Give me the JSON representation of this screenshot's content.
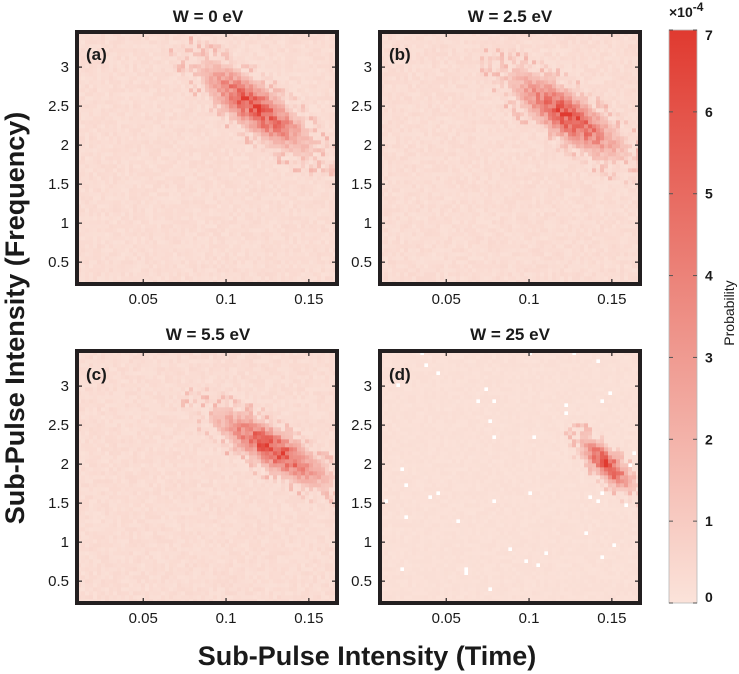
{
  "chart_data": {
    "type": "heatmap",
    "xlabel": "Sub-Pulse  Intensity  (Time)",
    "ylabel": "Sub-Pulse  Intensity  (Frequency)",
    "xlim": [
      0.01,
      0.167
    ],
    "ylim": [
      0.22,
      3.45
    ],
    "xticks": [
      0.05,
      0.1,
      0.15
    ],
    "xtick_labels": [
      "0.05",
      "0.1",
      "0.15"
    ],
    "yticks": [
      0.5,
      1,
      1.5,
      2,
      2.5,
      3
    ],
    "ytick_labels": [
      "0.5",
      "1",
      "1.5",
      "2",
      "2.5",
      "3"
    ],
    "colorbar": {
      "label": "Probability",
      "min": 0,
      "max": 7,
      "ticks": [
        0,
        1,
        2,
        3,
        4,
        5,
        6,
        7
      ],
      "tick_labels": [
        "0",
        "1",
        "2",
        "3",
        "4",
        "5",
        "6",
        "7"
      ],
      "multiplier_base": "×10",
      "multiplier_exponent": "-4",
      "color_low": "#fbe3da",
      "color_high": "#e03a30"
    },
    "panels": [
      {
        "label": "(a)",
        "title": "W = 0 eV",
        "peak": 6.5,
        "background": 0.25,
        "blob": {
          "center": [
            0.118,
            2.48
          ],
          "slope_dy_dx": -14.0,
          "half_length_x": 0.032,
          "half_width_y": 0.33
        }
      },
      {
        "label": "(b)",
        "title": "W = 2.5 eV",
        "peak": 6.5,
        "background": 0.25,
        "blob": {
          "center": [
            0.123,
            2.38
          ],
          "slope_dy_dx": -13.0,
          "half_length_x": 0.033,
          "half_width_y": 0.33
        }
      },
      {
        "label": "(c)",
        "title": "W = 5.5 eV",
        "peak": 6.5,
        "background": 0.25,
        "blob": {
          "center": [
            0.128,
            2.2
          ],
          "slope_dy_dx": -11.5,
          "half_length_x": 0.034,
          "half_width_y": 0.28
        }
      },
      {
        "label": "(d)",
        "title": "W = 25 eV",
        "peak": 7.0,
        "background": 0.12,
        "blob": {
          "center": [
            0.147,
            2.0
          ],
          "slope_dy_dx": -16.0,
          "half_length_x": 0.016,
          "half_width_y": 0.22
        }
      }
    ]
  }
}
